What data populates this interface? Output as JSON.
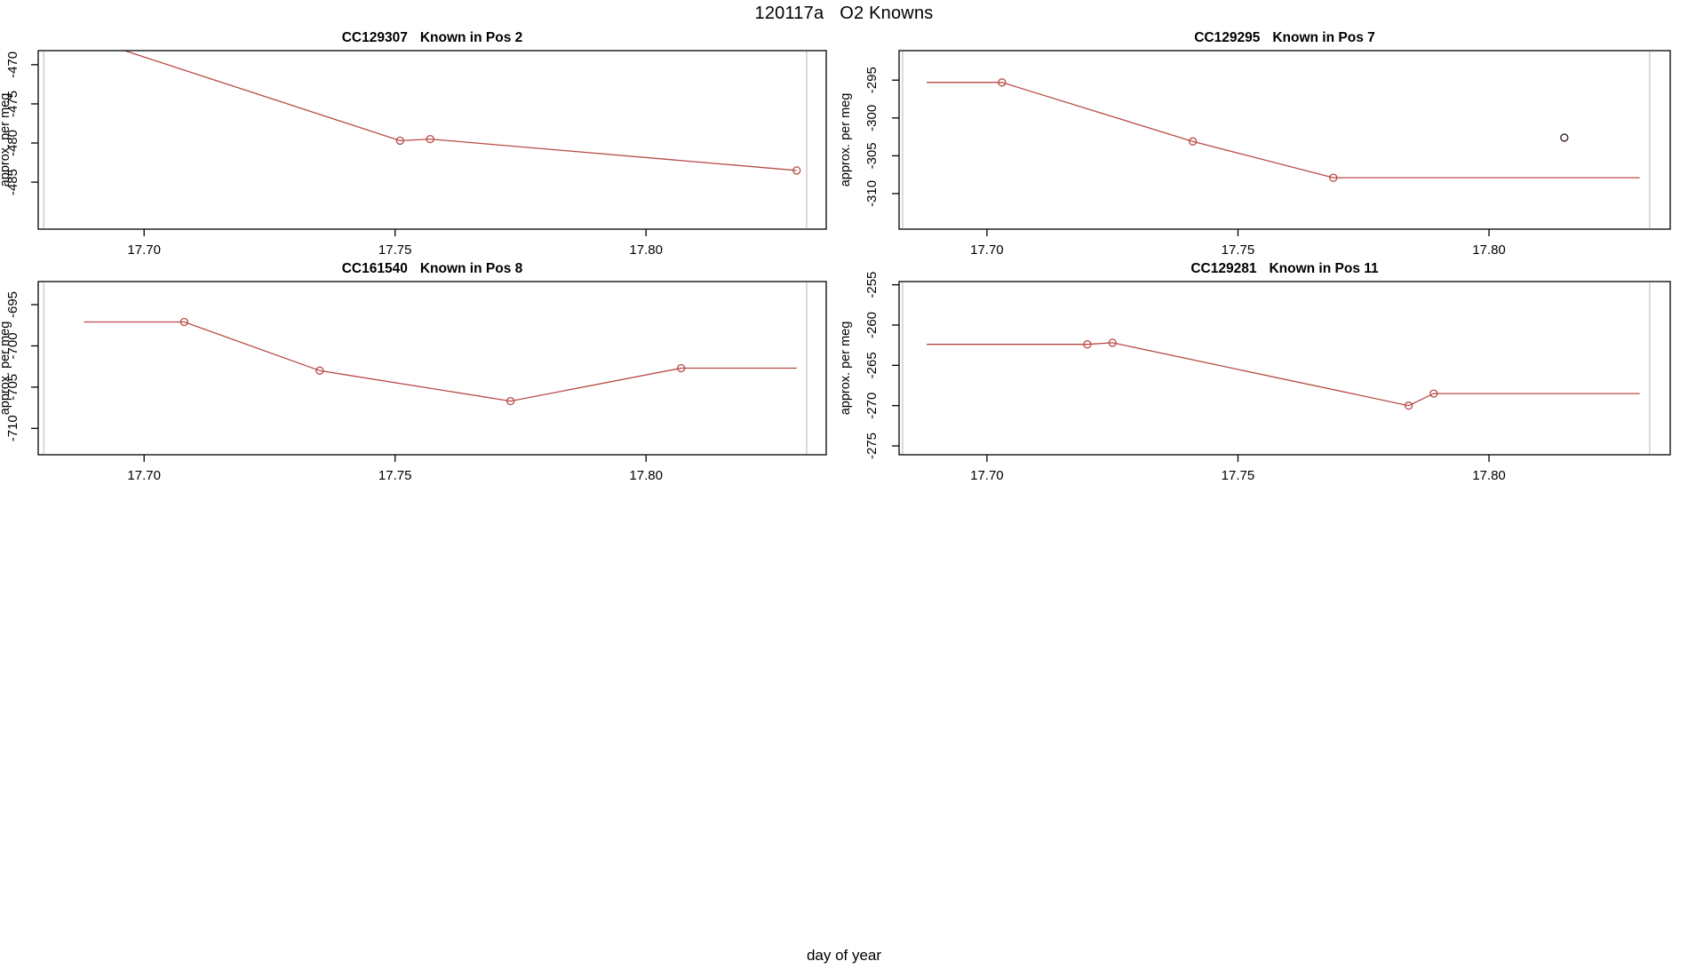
{
  "figure": {
    "title_run": "120117a",
    "title_text": "O2 Knowns",
    "xlabel": "day of year"
  },
  "styles": {
    "line_color": "#b74a45",
    "marker_color": "#b74a45",
    "outlier_color": "#3a2422",
    "vline_color": "#d6d6d6",
    "axis_color": "#000000"
  },
  "chart_data": [
    {
      "type": "line",
      "sample": "CC129307",
      "pos_label": "Known in Pos 2",
      "ylabel": "approx. per meg",
      "xlabel": "day of year",
      "xlim": [
        17.6789,
        17.8359
      ],
      "ylim": [
        -491.0,
        -468.2
      ],
      "x_ticks": [
        {
          "v": 17.7,
          "label": "17.70"
        },
        {
          "v": 17.75,
          "label": "17.75"
        },
        {
          "v": 17.8,
          "label": "17.80"
        }
      ],
      "y_ticks": [
        {
          "v": -470,
          "label": "-470"
        },
        {
          "v": -475,
          "label": "-475"
        },
        {
          "v": -480,
          "label": "-480"
        },
        {
          "v": -485,
          "label": "-485"
        }
      ],
      "vlines": [
        17.68,
        17.832
      ],
      "line": [
        [
          17.688,
          -466.5
        ],
        [
          17.751,
          -479.7
        ],
        [
          17.757,
          -479.5
        ],
        [
          17.83,
          -483.5
        ]
      ],
      "markers": [
        [
          17.751,
          -479.7
        ],
        [
          17.757,
          -479.5
        ],
        [
          17.83,
          -483.5
        ]
      ],
      "outliers": []
    },
    {
      "type": "line",
      "sample": "CC129295",
      "pos_label": "Known in Pos 7",
      "ylabel": "approx. per meg",
      "xlabel": "day of year",
      "xlim": [
        17.6825,
        17.8361
      ],
      "ylim": [
        -314.7,
        -291.1
      ],
      "x_ticks": [
        {
          "v": 17.7,
          "label": "17.70"
        },
        {
          "v": 17.75,
          "label": "17.75"
        },
        {
          "v": 17.8,
          "label": "17.80"
        }
      ],
      "y_ticks": [
        {
          "v": -295,
          "label": "-295"
        },
        {
          "v": -300,
          "label": "-300"
        },
        {
          "v": -305,
          "label": "-305"
        },
        {
          "v": -310,
          "label": "-310"
        }
      ],
      "vlines": [
        17.6832,
        17.832
      ],
      "line": [
        [
          17.688,
          -295.3
        ],
        [
          17.703,
          -295.3
        ],
        [
          17.741,
          -303.1
        ],
        [
          17.769,
          -307.9
        ],
        [
          17.83,
          -307.9
        ]
      ],
      "markers": [
        [
          17.703,
          -295.3
        ],
        [
          17.741,
          -303.1
        ],
        [
          17.769,
          -307.9
        ]
      ],
      "outliers": [
        [
          17.815,
          -302.6
        ]
      ]
    },
    {
      "type": "line",
      "sample": "CC161540",
      "pos_label": "Known in Pos 8",
      "ylabel": "approx. per meg",
      "xlabel": "day of year",
      "xlim": [
        17.6789,
        17.8359
      ],
      "ylim": [
        -713.2,
        -692.2
      ],
      "x_ticks": [
        {
          "v": 17.7,
          "label": "17.70"
        },
        {
          "v": 17.75,
          "label": "17.75"
        },
        {
          "v": 17.8,
          "label": "17.80"
        }
      ],
      "y_ticks": [
        {
          "v": -695,
          "label": "-695"
        },
        {
          "v": -700,
          "label": "-700"
        },
        {
          "v": -705,
          "label": "-705"
        },
        {
          "v": -710,
          "label": "-710"
        }
      ],
      "vlines": [
        17.68,
        17.832
      ],
      "line": [
        [
          17.688,
          -697.1
        ],
        [
          17.708,
          -697.1
        ],
        [
          17.735,
          -703.0
        ],
        [
          17.773,
          -706.7
        ],
        [
          17.807,
          -702.7
        ],
        [
          17.83,
          -702.7
        ]
      ],
      "markers": [
        [
          17.708,
          -697.1
        ],
        [
          17.735,
          -703.0
        ],
        [
          17.773,
          -706.7
        ],
        [
          17.807,
          -702.7
        ]
      ],
      "outliers": []
    },
    {
      "type": "line",
      "sample": "CC129281",
      "pos_label": "Known in Pos 11",
      "ylabel": "approx. per meg",
      "xlabel": "day of year",
      "xlim": [
        17.6825,
        17.8361
      ],
      "ylim": [
        -276.1,
        -254.6
      ],
      "x_ticks": [
        {
          "v": 17.7,
          "label": "17.70"
        },
        {
          "v": 17.75,
          "label": "17.75"
        },
        {
          "v": 17.8,
          "label": "17.80"
        }
      ],
      "y_ticks": [
        {
          "v": -255,
          "label": "-255"
        },
        {
          "v": -260,
          "label": "-260"
        },
        {
          "v": -265,
          "label": "-265"
        },
        {
          "v": -270,
          "label": "-270"
        },
        {
          "v": -275,
          "label": "-275"
        }
      ],
      "vlines": [
        17.6832,
        17.832
      ],
      "line": [
        [
          17.688,
          -262.4
        ],
        [
          17.72,
          -262.4
        ],
        [
          17.725,
          -262.2
        ],
        [
          17.784,
          -270.0
        ],
        [
          17.789,
          -268.5
        ],
        [
          17.83,
          -268.5
        ]
      ],
      "markers": [
        [
          17.72,
          -262.4
        ],
        [
          17.725,
          -262.2
        ],
        [
          17.784,
          -270.0
        ],
        [
          17.789,
          -268.5
        ]
      ],
      "outliers": [
        [
          17.72,
          -262.4
        ]
      ]
    }
  ]
}
